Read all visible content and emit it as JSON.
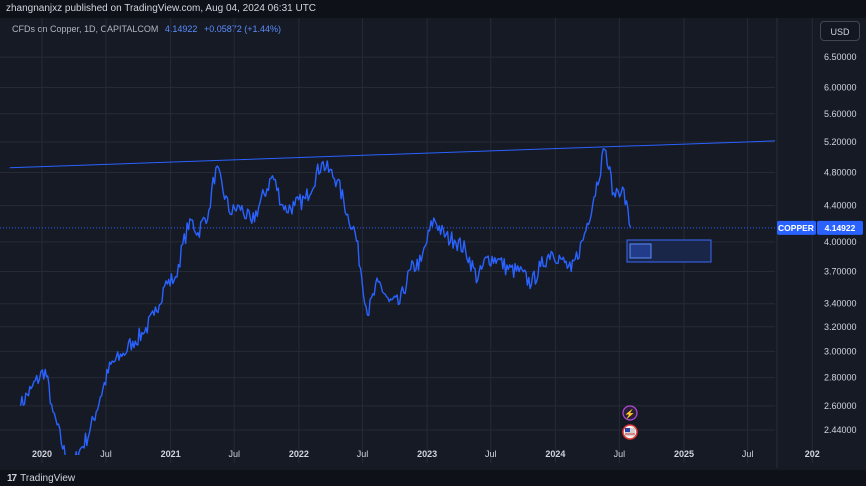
{
  "header": {
    "publisher_line": "zhangnanjxz published on TradingView.com, Aug 04, 2024 06:31 UTC"
  },
  "legend": {
    "symbol": "CFDs on Copper, 1D, CAPITALCOM",
    "price": "4.14922",
    "change": "+0.05872 (+1.44%)"
  },
  "toolbar": {
    "currency": "USD"
  },
  "branding": {
    "logo_text": "TradingView"
  },
  "colors": {
    "background": "#161a25",
    "series": "#2962ff",
    "text": "#d1d4dc",
    "trendline": "#2962ff"
  },
  "chart_data": {
    "type": "line",
    "series": [
      {
        "name": "COPPER",
        "points": [
          [
            "2019-11-01",
            2.6
          ],
          [
            "2019-12-01",
            2.72
          ],
          [
            "2020-01-10",
            2.86
          ],
          [
            "2020-02-01",
            2.56
          ],
          [
            "2020-03-20",
            2.18
          ],
          [
            "2020-04-15",
            2.3
          ],
          [
            "2020-05-15",
            2.42
          ],
          [
            "2020-06-15",
            2.66
          ],
          [
            "2020-07-15",
            2.9
          ],
          [
            "2020-08-15",
            2.96
          ],
          [
            "2020-09-15",
            3.08
          ],
          [
            "2020-10-15",
            3.14
          ],
          [
            "2020-11-15",
            3.3
          ],
          [
            "2020-12-15",
            3.56
          ],
          [
            "2021-01-15",
            3.65
          ],
          [
            "2021-02-25",
            4.25
          ],
          [
            "2021-03-20",
            4.1
          ],
          [
            "2021-04-20",
            4.35
          ],
          [
            "2021-05-10",
            4.86
          ],
          [
            "2021-06-20",
            4.3
          ],
          [
            "2021-07-15",
            4.4
          ],
          [
            "2021-08-20",
            4.2
          ],
          [
            "2021-10-18",
            4.76
          ],
          [
            "2021-11-20",
            4.35
          ],
          [
            "2021-12-20",
            4.4
          ],
          [
            "2022-01-20",
            4.48
          ],
          [
            "2022-03-07",
            4.92
          ],
          [
            "2022-04-20",
            4.7
          ],
          [
            "2022-05-20",
            4.3
          ],
          [
            "2022-06-10",
            4.1
          ],
          [
            "2022-07-15",
            3.3
          ],
          [
            "2022-08-15",
            3.6
          ],
          [
            "2022-09-15",
            3.42
          ],
          [
            "2022-10-15",
            3.4
          ],
          [
            "2022-11-15",
            3.72
          ],
          [
            "2022-12-15",
            3.8
          ],
          [
            "2023-01-20",
            4.26
          ],
          [
            "2023-02-20",
            4.05
          ],
          [
            "2023-03-20",
            4.02
          ],
          [
            "2023-04-20",
            3.92
          ],
          [
            "2023-05-25",
            3.62
          ],
          [
            "2023-06-20",
            3.84
          ],
          [
            "2023-07-20",
            3.82
          ],
          [
            "2023-08-20",
            3.72
          ],
          [
            "2023-09-20",
            3.7
          ],
          [
            "2023-10-25",
            3.58
          ],
          [
            "2023-11-20",
            3.75
          ],
          [
            "2023-12-20",
            3.9
          ],
          [
            "2024-01-20",
            3.82
          ],
          [
            "2024-02-15",
            3.7
          ],
          [
            "2024-03-20",
            4.02
          ],
          [
            "2024-04-20",
            4.5
          ],
          [
            "2024-05-20",
            5.1
          ],
          [
            "2024-06-15",
            4.55
          ],
          [
            "2024-07-10",
            4.62
          ],
          [
            "2024-08-02",
            4.14922
          ]
        ]
      }
    ],
    "y_axis": {
      "scale": "log",
      "ticks": [
        "6.50000",
        "6.00000",
        "5.60000",
        "5.20000",
        "4.80000",
        "4.40000",
        "4.00000",
        "3.70000",
        "3.40000",
        "3.20000",
        "3.00000",
        "2.80000",
        "2.60000",
        "2.44000"
      ]
    },
    "x_axis": {
      "ticks": [
        "2020",
        "Jul",
        "2021",
        "Jul",
        "2022",
        "Jul",
        "2023",
        "Jul",
        "2024",
        "Jul",
        "2025",
        "Jul",
        "202"
      ]
    },
    "trendline": {
      "from": [
        "2019-10-01",
        4.86
      ],
      "to": [
        "2025-12-15",
        5.23
      ]
    },
    "price_label": {
      "name": "COPPER",
      "value": "4.14922"
    },
    "grid": true
  }
}
